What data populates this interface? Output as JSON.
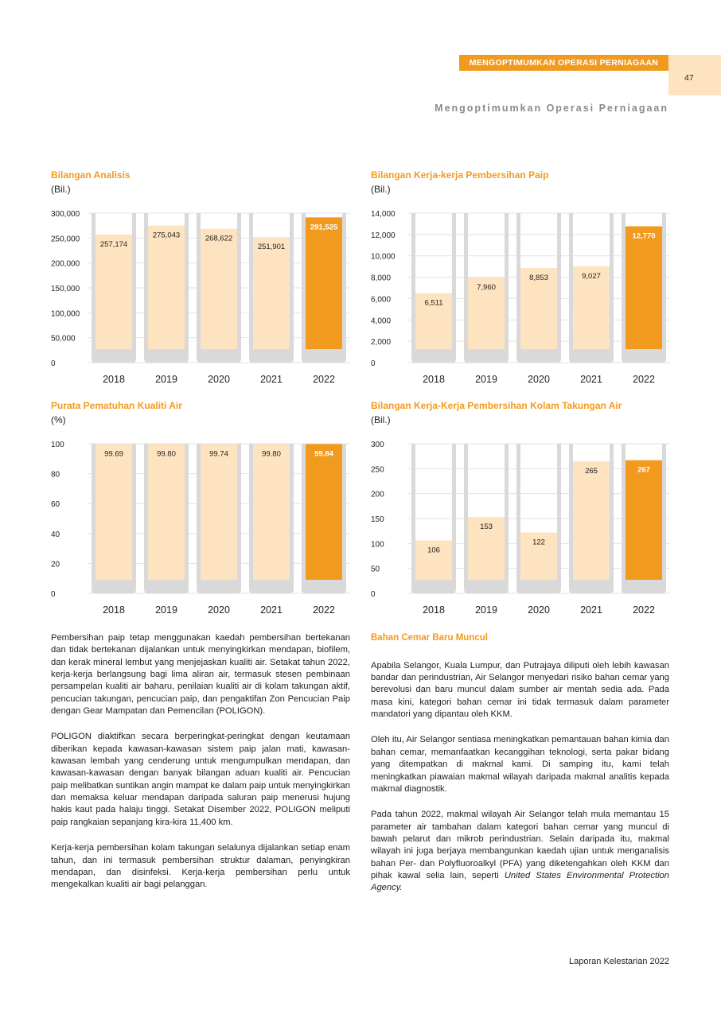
{
  "header": {
    "section_label": "MENGOPTIMUMKAN OPERASI PERNIAGAAN",
    "page_number": "47",
    "subtitle": "Mengoptimumkan Operasi Perniagaan"
  },
  "charts": [
    {
      "title": "Bilangan Analisis",
      "unit": "(Bil.)"
    },
    {
      "title": "Bilangan Kerja-kerja Pembersihan Paip",
      "unit": "(Bil.)"
    },
    {
      "title": "Purata Pematuhan Kualiti Air",
      "unit": "(%)"
    },
    {
      "title": "Bilangan Kerja-Kerja Pembersihan Kolam Takungan Air",
      "unit": "(Bil.)"
    }
  ],
  "chart_data": [
    {
      "type": "bar",
      "title": "Bilangan Analisis",
      "ylabel": "(Bil.)",
      "categories": [
        "2018",
        "2019",
        "2020",
        "2021",
        "2022"
      ],
      "values": [
        257174,
        275043,
        268622,
        251901,
        291525
      ],
      "labels": [
        "257,174",
        "275,043",
        "268,622",
        "251,901",
        "291,525"
      ],
      "yticks": [
        "0",
        "50,000",
        "100,000",
        "150,000",
        "200,000",
        "250,000",
        "300,000"
      ],
      "ylim": [
        0,
        300000
      ],
      "grid": true,
      "colors": {
        "bar": "#fde3bf",
        "highlight": "#f29a1e",
        "track": "#d9d9d9"
      }
    },
    {
      "type": "bar",
      "title": "Bilangan Kerja-kerja Pembersihan Paip",
      "ylabel": "(Bil.)",
      "categories": [
        "2018",
        "2019",
        "2020",
        "2021",
        "2022"
      ],
      "values": [
        6511,
        7960,
        8853,
        9027,
        12770
      ],
      "labels": [
        "6,511",
        "7,960",
        "8,853",
        "9,027",
        "12,770"
      ],
      "yticks": [
        "0",
        "2,000",
        "4,000",
        "6,000",
        "8,000",
        "10,000",
        "12,000",
        "14,000"
      ],
      "ylim": [
        0,
        14000
      ],
      "grid": true,
      "colors": {
        "bar": "#fde3bf",
        "highlight": "#f29a1e",
        "track": "#d9d9d9"
      }
    },
    {
      "type": "bar",
      "title": "Purata Pematuhan Kualiti Air",
      "ylabel": "(%)",
      "categories": [
        "2018",
        "2019",
        "2020",
        "2021",
        "2022"
      ],
      "values": [
        99.69,
        99.8,
        99.74,
        99.8,
        99.84
      ],
      "labels": [
        "99.69",
        "99.80",
        "99.74",
        "99.80",
        "99.84"
      ],
      "yticks": [
        "0",
        "20",
        "40",
        "60",
        "80",
        "100"
      ],
      "ylim": [
        0,
        100
      ],
      "grid": true,
      "colors": {
        "bar": "#fde3bf",
        "highlight": "#f29a1e",
        "track": "#d9d9d9"
      }
    },
    {
      "type": "bar",
      "title": "Bilangan Kerja-Kerja Pembersihan Kolam Takungan Air",
      "ylabel": "(Bil.)",
      "categories": [
        "2018",
        "2019",
        "2020",
        "2021",
        "2022"
      ],
      "values": [
        106,
        153,
        122,
        265,
        267
      ],
      "labels": [
        "106",
        "153",
        "122",
        "265",
        "267"
      ],
      "yticks": [
        "0",
        "50",
        "100",
        "150",
        "200",
        "250",
        "300"
      ],
      "ylim": [
        0,
        300
      ],
      "grid": true,
      "colors": {
        "bar": "#fde3bf",
        "highlight": "#f29a1e",
        "track": "#d9d9d9"
      }
    }
  ],
  "body": {
    "left": [
      "Pembersihan paip tetap menggunakan kaedah pembersihan bertekanan dan tidak bertekanan dijalankan untuk menyingkirkan mendapan, biofilem, dan kerak mineral lembut yang menjejaskan kualiti air. Setakat tahun 2022, kerja-kerja berlangsung bagi lima aliran air, termasuk stesen pembinaan persampelan kualiti air baharu, penilaian kualiti air di kolam takungan aktif, pencucian takungan, pencucian paip, dan pengaktifan Zon Pencucian Paip dengan Gear Mampatan dan Pemencilan (POLIGON).",
      "POLIGON diaktifkan secara berperingkat-peringkat dengan keutamaan diberikan kepada kawasan-kawasan sistem paip jalan mati, kawasan-kawasan lembah yang cenderung untuk mengumpulkan mendapan, dan kawasan-kawasan dengan banyak bilangan aduan kualiti air. Pencucian paip melibatkan suntikan angin mampat ke dalam paip untuk menyingkirkan dan memaksa keluar mendapan daripada saluran paip menerusi hujung hakis kaut pada halaju tinggi. Setakat Disember 2022, POLIGON meliputi paip rangkaian sepanjang kira-kira 11,400 km.",
      "Kerja-kerja pembersihan kolam takungan selalunya dijalankan setiap enam tahun, dan ini termasuk pembersihan struktur dalaman, penyingkiran mendapan, dan disinfeksi. Kerja-kerja pembersihan perlu untuk mengekalkan kualiti air bagi pelanggan."
    ],
    "right_heading": "Bahan Cemar Baru Muncul",
    "right": [
      "Apabila Selangor, Kuala Lumpur, dan Putrajaya diliputi oleh lebih kawasan bandar dan perindustrian, Air Selangor menyedari risiko bahan cemar yang berevolusi dan baru muncul dalam sumber air mentah sedia ada. Pada masa kini, kategori bahan cemar ini tidak termasuk dalam parameter mandatori yang dipantau oleh KKM.",
      "Oleh itu, Air Selangor sentiasa meningkatkan pemantauan bahan kimia dan bahan cemar, memanfaatkan kecanggihan teknologi, serta pakar bidang yang ditempatkan di makmal kami. Di samping itu, kami telah meningkatkan piawaian makmal wilayah daripada makmal analitis kepada makmal diagnostik.",
      "Pada tahun 2022, makmal wilayah Air Selangor telah mula memantau 15 parameter air tambahan dalam kategori bahan cemar yang muncul di bawah pelarut dan mikrob perindustrian. Selain daripada itu, makmal wilayah ini juga berjaya membangunkan kaedah ujian untuk menganalisis bahan Per- dan Polyfluoroalkyl (PFA) yang diketengahkan oleh KKM dan pihak kawal selia lain, seperti"
    ],
    "right_italic": "United States Environmental Protection Agency."
  },
  "footer": "Laporan Kelestarian 2022"
}
